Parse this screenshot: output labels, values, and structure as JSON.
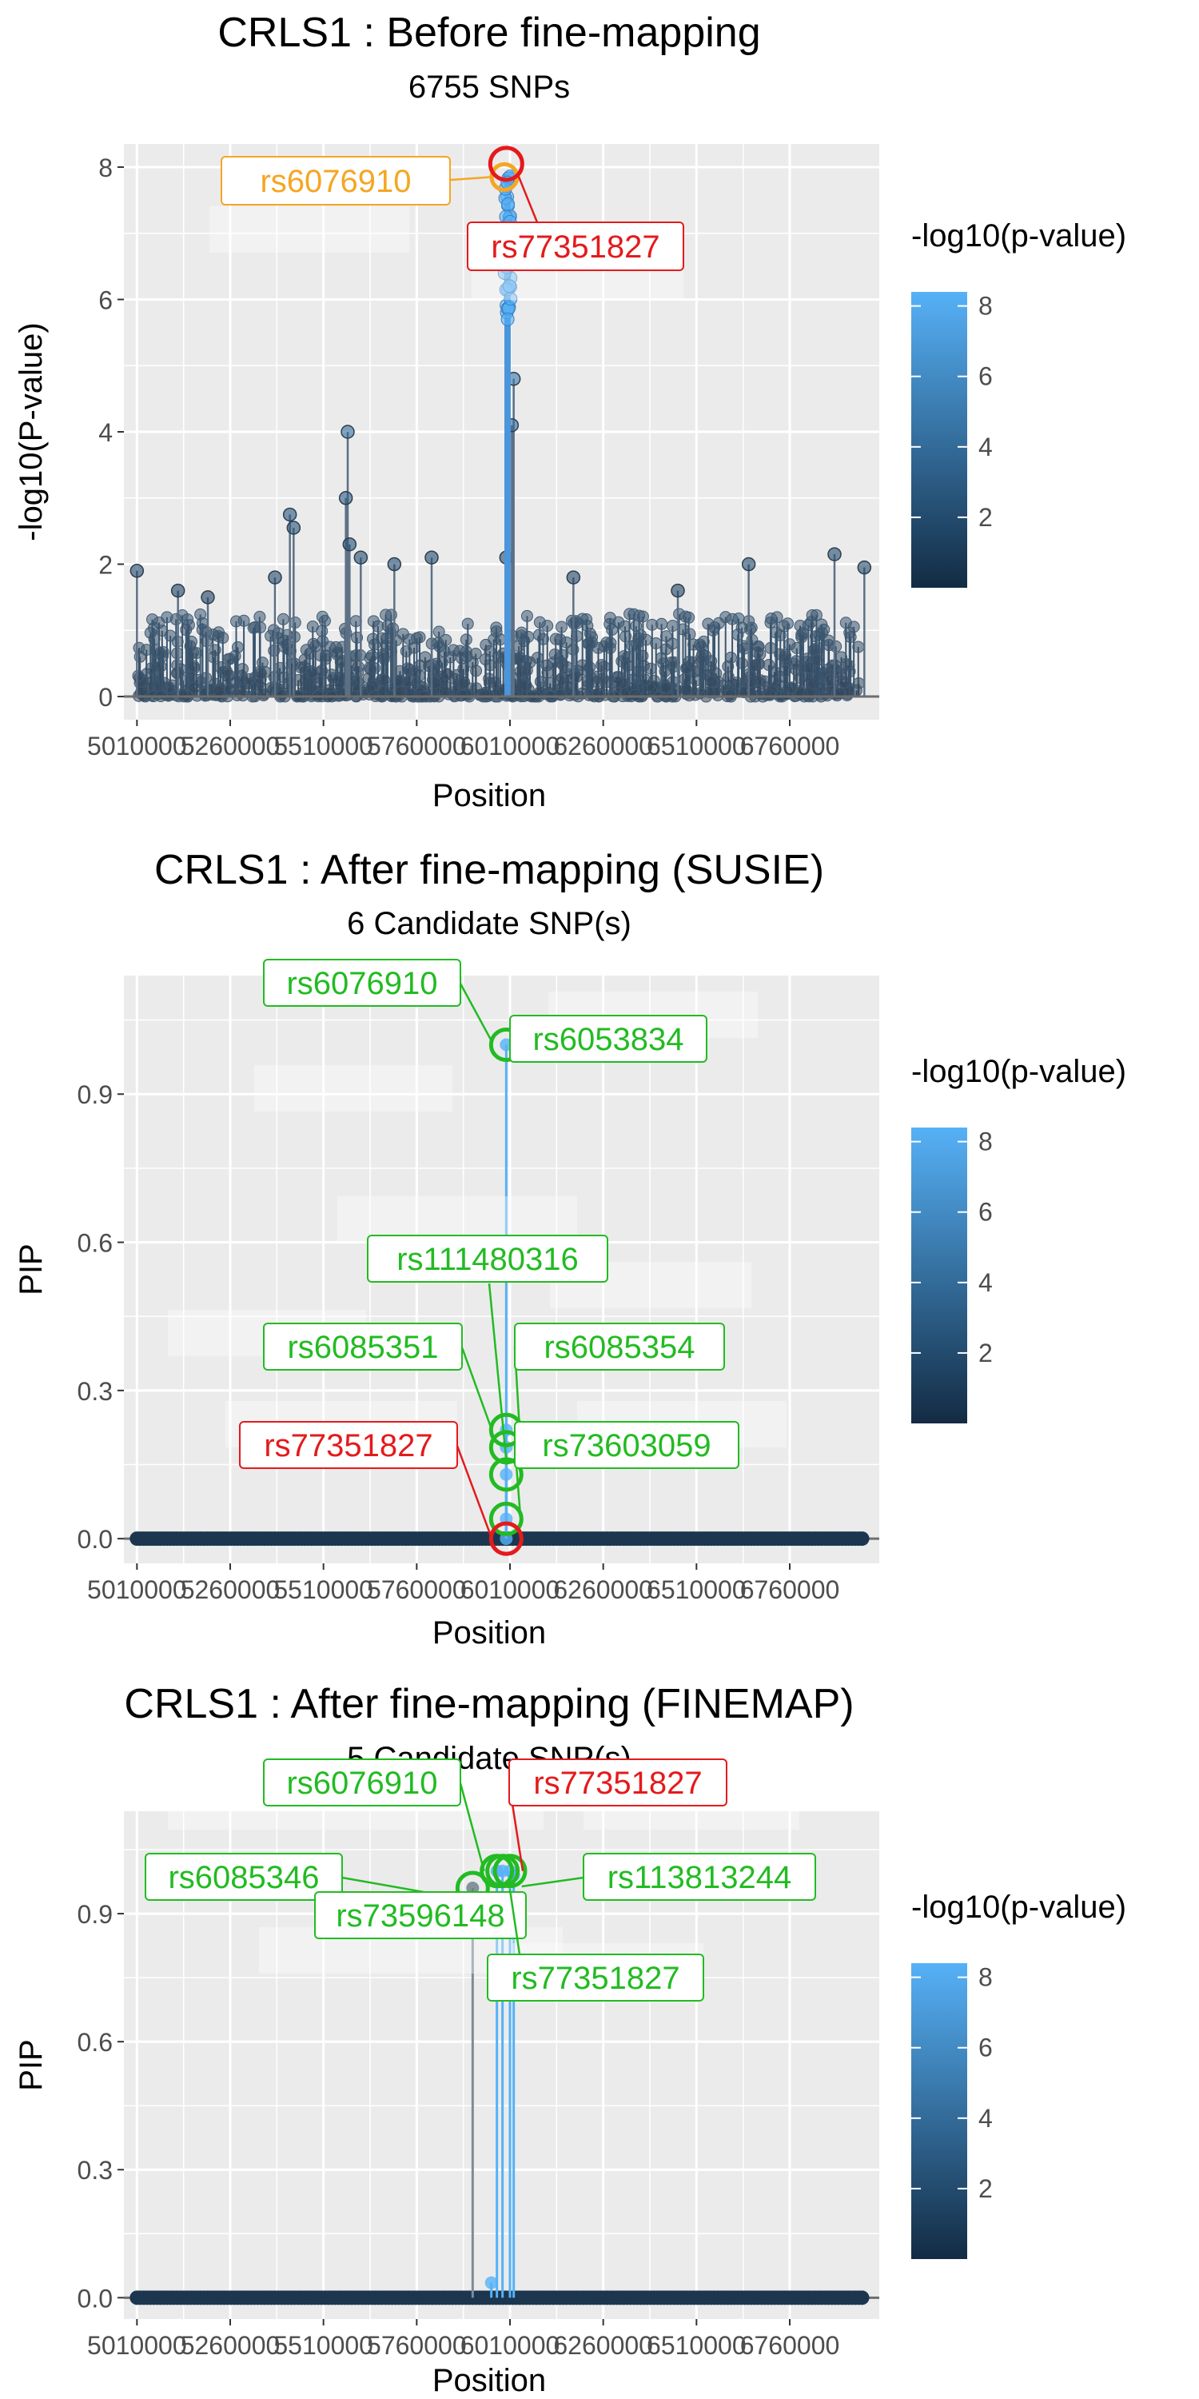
{
  "colors": {
    "panel_bg": "#ebebeb",
    "grid": "#ffffff",
    "low": "#132b43",
    "high": "#56b1f7",
    "green": "#22bb22",
    "red": "#e41a1c",
    "orange": "#f5a623"
  },
  "legend": {
    "title": "-log10(p-value)",
    "ticks": [
      "2",
      "4",
      "6",
      "8"
    ]
  },
  "chart_data": [
    {
      "type": "scatter",
      "style": "lollipop",
      "title": "CRLS1 : Before fine-mapping",
      "subtitle": "6755 SNPs",
      "xlabel": "Position",
      "ylabel": "-log10(P-value)",
      "xlim": [
        4975000,
        7000000
      ],
      "ylim": [
        -0.35,
        8.35
      ],
      "x_ticks": [
        5010000,
        5260000,
        5510000,
        5760000,
        6010000,
        6260000,
        6510000,
        6760000
      ],
      "x_tick_labels": [
        "5010000",
        "5260000",
        "5510000",
        "5760000",
        "6010000",
        "6260000",
        "6510000",
        "6760000"
      ],
      "y_ticks": [
        0,
        2,
        4,
        6,
        8
      ],
      "y_tick_labels": [
        "0",
        "2",
        "4",
        "6",
        "8"
      ],
      "reference_line": 0,
      "peaks": [
        {
          "x": 5010000,
          "y": 1.9
        },
        {
          "x": 5120000,
          "y": 1.6
        },
        {
          "x": 5200000,
          "y": 1.5
        },
        {
          "x": 5380000,
          "y": 1.8
        },
        {
          "x": 5420000,
          "y": 2.75
        },
        {
          "x": 5430000,
          "y": 2.55
        },
        {
          "x": 5575000,
          "y": 4.0
        },
        {
          "x": 5570000,
          "y": 3.0
        },
        {
          "x": 5580000,
          "y": 2.3
        },
        {
          "x": 5610000,
          "y": 2.1
        },
        {
          "x": 5700000,
          "y": 2.0
        },
        {
          "x": 5800000,
          "y": 2.1
        },
        {
          "x": 6000000,
          "y": 2.1
        },
        {
          "x": 6020000,
          "y": 4.8
        },
        {
          "x": 6015000,
          "y": 4.1
        },
        {
          "x": 6180000,
          "y": 1.8
        },
        {
          "x": 6460000,
          "y": 1.6
        },
        {
          "x": 6650000,
          "y": 2.0
        },
        {
          "x": 6880000,
          "y": 2.15
        },
        {
          "x": 6960000,
          "y": 1.95
        }
      ],
      "high_band": {
        "x_from": 5995000,
        "x_to": 6012000,
        "y_max": 7.9
      },
      "labels": [
        {
          "text": "rs6076910",
          "x": 5995000,
          "y": 7.9,
          "color": "orange"
        },
        {
          "text": "rs77351827",
          "x": 6000000,
          "y": 8.05,
          "color": "red"
        }
      ]
    },
    {
      "type": "scatter",
      "style": "lollipop",
      "title": "CRLS1 : After fine-mapping (SUSIE)",
      "subtitle": "6 Candidate SNP(s)",
      "xlabel": "Position",
      "ylabel": "PIP",
      "xlim": [
        4975000,
        7000000
      ],
      "ylim": [
        -0.05,
        1.14
      ],
      "x_ticks": [
        5010000,
        5260000,
        5510000,
        5760000,
        6010000,
        6260000,
        6510000,
        6760000
      ],
      "x_tick_labels": [
        "5010000",
        "5260000",
        "5510000",
        "5760000",
        "6010000",
        "6260000",
        "6510000",
        "6760000"
      ],
      "y_ticks": [
        0.0,
        0.3,
        0.6,
        0.9
      ],
      "y_tick_labels": [
        "0.0",
        "0.3",
        "0.6",
        "0.9"
      ],
      "reference_line": 0,
      "candidates": [
        {
          "x": 6000000,
          "y": 1.0
        },
        {
          "x": 6000000,
          "y": 0.22
        },
        {
          "x": 6000000,
          "y": 0.185
        },
        {
          "x": 6000000,
          "y": 0.13
        },
        {
          "x": 6000000,
          "y": 0.04
        },
        {
          "x": 6000000,
          "y": 0.0
        }
      ],
      "labels": [
        {
          "text": "rs6076910",
          "x": 6000000,
          "y": 1.0,
          "color": "green"
        },
        {
          "text": "rs6053834",
          "x": 6000000,
          "y": 1.0,
          "color": "green"
        },
        {
          "text": "rs111480316",
          "x": 6000000,
          "y": 0.13,
          "color": "green"
        },
        {
          "text": "rs6085351",
          "x": 6000000,
          "y": 0.22,
          "color": "green"
        },
        {
          "text": "rs6085354",
          "x": 6000000,
          "y": 0.185,
          "color": "green"
        },
        {
          "text": "rs77351827",
          "x": 6000000,
          "y": 0.0,
          "color": "red"
        },
        {
          "text": "rs73603059",
          "x": 6000000,
          "y": 0.04,
          "color": "green"
        }
      ]
    },
    {
      "type": "scatter",
      "style": "lollipop",
      "title": "CRLS1 : After fine-mapping (FINEMAP)",
      "subtitle": "5 Candidate SNP(s)",
      "xlabel": "Position",
      "ylabel": "PIP",
      "xlim": [
        4975000,
        7000000
      ],
      "ylim": [
        -0.05,
        1.14
      ],
      "x_ticks": [
        5010000,
        5260000,
        5510000,
        5760000,
        6010000,
        6260000,
        6510000,
        6760000
      ],
      "x_tick_labels": [
        "5010000",
        "5260000",
        "5510000",
        "5760000",
        "6010000",
        "6260000",
        "6510000",
        "6760000"
      ],
      "y_ticks": [
        0.0,
        0.3,
        0.6,
        0.9
      ],
      "y_tick_labels": [
        "0.0",
        "0.3",
        "0.6",
        "0.9"
      ],
      "reference_line": 0,
      "candidates": [
        {
          "x": 5910000,
          "y": 0.96
        },
        {
          "x": 5960000,
          "y": 0.035
        },
        {
          "x": 5975000,
          "y": 1.0
        },
        {
          "x": 5990000,
          "y": 1.0
        },
        {
          "x": 6010000,
          "y": 1.0
        },
        {
          "x": 6020000,
          "y": 0.99
        }
      ],
      "labels": [
        {
          "text": "rs6076910",
          "x": 5975000,
          "y": 1.0,
          "color": "green"
        },
        {
          "text": "rs77351827",
          "x": 5990000,
          "y": 1.0,
          "color": "red"
        },
        {
          "text": "rs6085346",
          "x": 5910000,
          "y": 0.96,
          "color": "green"
        },
        {
          "text": "rs113813244",
          "x": 6010000,
          "y": 1.0,
          "color": "green"
        },
        {
          "text": "rs73596148",
          "x": 5975000,
          "y": 0.96,
          "color": "green"
        },
        {
          "text": "rs77351827",
          "x": 6020000,
          "y": 0.99,
          "color": "green"
        }
      ]
    }
  ]
}
